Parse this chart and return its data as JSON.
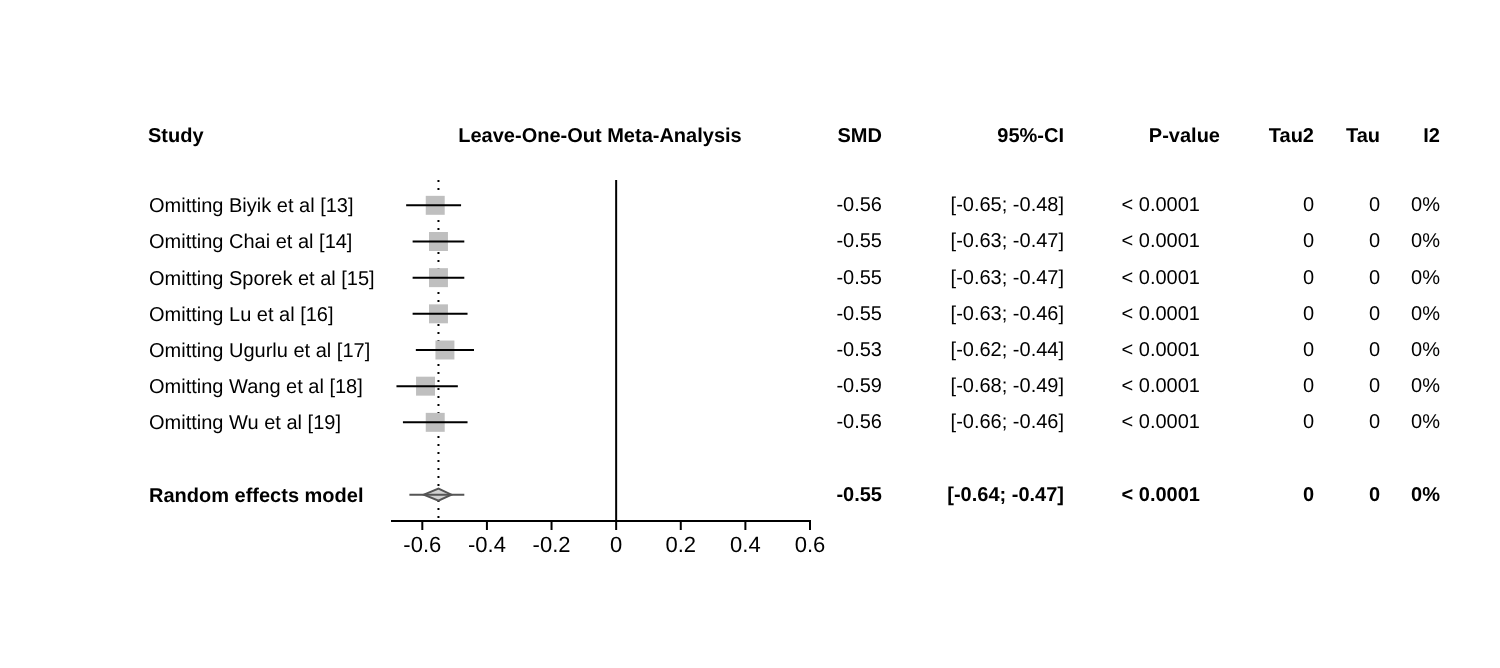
{
  "chart_data": {
    "type": "scatter",
    "title": "Leave-One-Out Meta-Analysis",
    "ylabel": "Study",
    "orientation": "horizontal",
    "categories": [
      "Omitting Biyik et al [13]",
      "Omitting Chai et al [14]",
      "Omitting Sporek et al [15]",
      "Omitting Lu et al [16]",
      "Omitting Ugurlu et al [17]",
      "Omitting Wang et al [18]",
      "Omitting Wu et al [19]",
      null,
      "Random effects model"
    ],
    "series": [
      {
        "type": "scatter",
        "marker": "square",
        "color": "#bfbfbf",
        "values": [
          -0.56,
          -0.55,
          -0.55,
          -0.55,
          -0.53,
          -0.59,
          -0.56,
          null,
          null
        ],
        "errors": [
          [
            -0.65,
            -0.48
          ],
          [
            -0.63,
            -0.47
          ],
          [
            -0.63,
            -0.47
          ],
          [
            -0.63,
            -0.46
          ],
          [
            -0.62,
            -0.44
          ],
          [
            -0.68,
            -0.49
          ],
          [
            -0.66,
            -0.46
          ],
          null,
          null
        ]
      },
      {
        "type": "scatter",
        "marker": "diamond",
        "color": "#d3d3d3",
        "values": [
          null,
          null,
          null,
          null,
          null,
          null,
          null,
          null,
          -0.55
        ],
        "errors": [
          null,
          null,
          null,
          null,
          null,
          null,
          null,
          null,
          [
            -0.64,
            -0.47
          ]
        ]
      }
    ],
    "value_labels": [
      "-0.56",
      "-0.55",
      "-0.55",
      "-0.55",
      "-0.53",
      "-0.59",
      "-0.56",
      null,
      "-0.55"
    ],
    "annotations": [
      "SMD",
      "95%-CI",
      "P-value",
      "Tau2",
      "Tau",
      "I2",
      "[-0.65; -0.48]",
      "< 0.0001",
      "0",
      "0",
      "0%",
      "[-0.63; -0.47]",
      "< 0.0001",
      "0",
      "0",
      "0%",
      "[-0.63; -0.47]",
      "< 0.0001",
      "0",
      "0",
      "0%",
      "[-0.63; -0.46]",
      "< 0.0001",
      "0",
      "0",
      "0%",
      "[-0.62; -0.44]",
      "< 0.0001",
      "0",
      "0",
      "0%",
      "[-0.68; -0.49]",
      "< 0.0001",
      "0",
      "0",
      "0%",
      "[-0.66; -0.46]",
      "< 0.0001",
      "0",
      "0",
      "0%",
      "[-0.64; -0.47]",
      "< 0.0001",
      "0",
      "0",
      "0%"
    ],
    "ref_lines": [
      {
        "axis": "x",
        "value": 0,
        "color": "#000000",
        "line_style": "solid"
      },
      {
        "axis": "x",
        "value": -0.55,
        "color": "#000000",
        "line_style": "dotted"
      }
    ],
    "xlim": [
      -0.7,
      0.6
    ],
    "xticks": [
      -0.6,
      -0.4,
      -0.2,
      0,
      0.2,
      0.4,
      0.6
    ],
    "grid": false,
    "legend": false
  }
}
